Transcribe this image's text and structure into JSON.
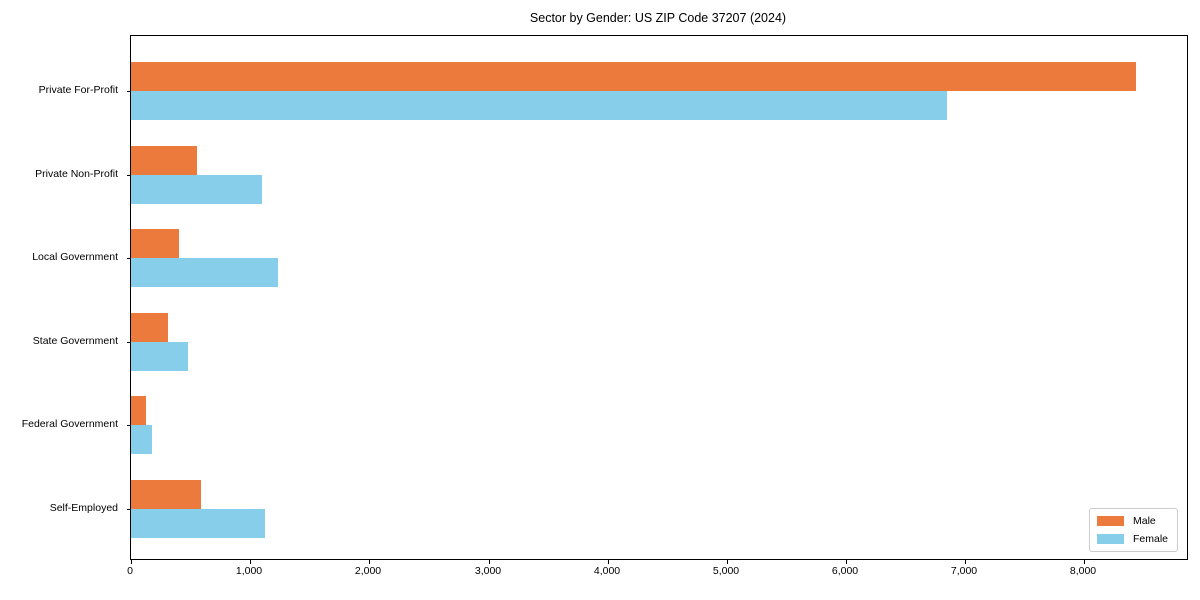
{
  "title": "Sector by Gender: US ZIP Code 37207 (2024)",
  "chart_data": {
    "type": "bar",
    "orientation": "horizontal",
    "title": "Sector by Gender: US ZIP Code 37207 (2024)",
    "categories": [
      "Private For-Profit",
      "Private Non-Profit",
      "Local Government",
      "State Government",
      "Federal Government",
      "Self-Employed"
    ],
    "series": [
      {
        "name": "Male",
        "color": "#EB7A3C",
        "values": [
          8430,
          550,
          400,
          310,
          130,
          590
        ]
      },
      {
        "name": "Female",
        "color": "#87CEEB",
        "values": [
          6845,
          1100,
          1230,
          480,
          180,
          1125
        ]
      }
    ],
    "xlabel": "",
    "ylabel": "",
    "xlim": [
      0,
      8860
    ],
    "x_ticks": [
      0,
      1000,
      2000,
      3000,
      4000,
      5000,
      6000,
      7000,
      8000
    ],
    "x_tick_labels": [
      "0",
      "1,000",
      "2,000",
      "3,000",
      "4,000",
      "5,000",
      "6,000",
      "7,000",
      "8,000"
    ],
    "grid": false,
    "legend_position": "lower right"
  },
  "legend": {
    "items": [
      {
        "label": "Male",
        "color": "#EB7A3C"
      },
      {
        "label": "Female",
        "color": "#87CEEB"
      }
    ]
  },
  "colors": {
    "male": "#EB7A3C",
    "female": "#87CEEB",
    "spine": "#000000",
    "legend_border": "#cccccc",
    "background": "#ffffff"
  }
}
